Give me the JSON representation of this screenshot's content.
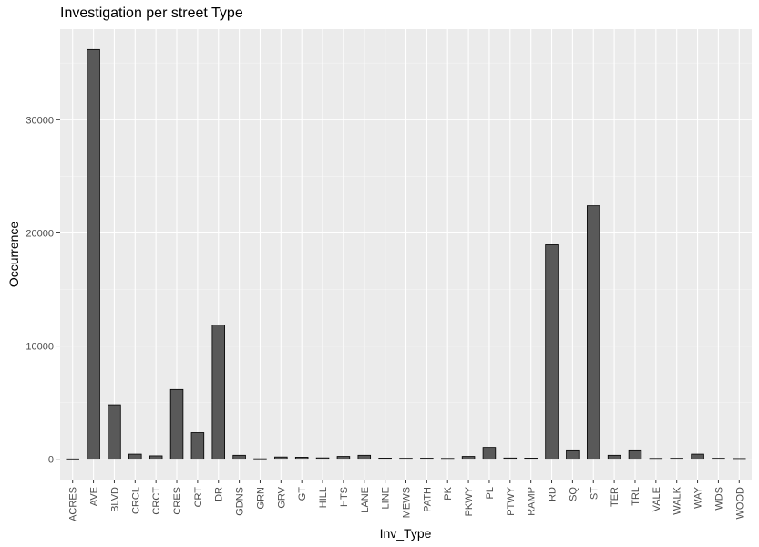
{
  "chart_data": {
    "type": "bar",
    "title": "Investigation per street Type",
    "xlabel": "Inv_Type",
    "ylabel": "Occurrence",
    "categories": [
      "ACRES",
      "AVE",
      "BLVD",
      "CRCL",
      "CRCT",
      "CRES",
      "CRT",
      "DR",
      "GDNS",
      "GRN",
      "GRV",
      "GT",
      "HILL",
      "HTS",
      "LANE",
      "LINE",
      "MEWS",
      "PATH",
      "PK",
      "PKWY",
      "PL",
      "PTWY",
      "RAMP",
      "RD",
      "SQ",
      "ST",
      "TER",
      "TRL",
      "VALE",
      "WALK",
      "WAY",
      "WDS",
      "WOOD"
    ],
    "values": [
      30,
      36200,
      4800,
      450,
      300,
      6150,
      2350,
      11850,
      350,
      40,
      200,
      180,
      120,
      250,
      350,
      100,
      80,
      90,
      70,
      250,
      1050,
      110,
      100,
      18950,
      750,
      22400,
      350,
      750,
      70,
      80,
      450,
      80,
      60
    ],
    "yticks": [
      0,
      10000,
      20000,
      30000
    ],
    "ylim": [
      -1800,
      38000
    ],
    "bar_color": "#595959",
    "panel_color": "#ebebeb",
    "grid": true
  }
}
